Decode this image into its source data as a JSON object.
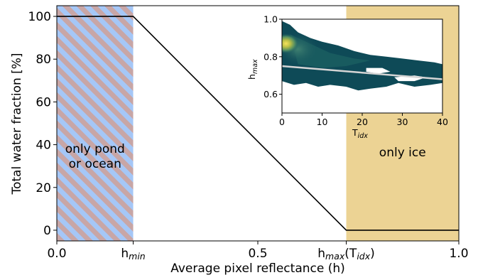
{
  "chart_data": [
    {
      "type": "line",
      "xlabel": "Average pixel reflectance (h)",
      "ylabel": "Total water fraction [%]",
      "xlim": [
        0.0,
        1.0
      ],
      "ylim": [
        -5,
        105
      ],
      "x_ticks": [
        {
          "value": 0.0,
          "label": "0.0"
        },
        {
          "value": 0.19,
          "label": "h",
          "sub": "min"
        },
        {
          "value": 0.5,
          "label": "0.5"
        },
        {
          "value": 0.72,
          "label": "h",
          "sub": "max",
          "suffix": "(T",
          "sub2": "idx",
          "suffix2": ")"
        },
        {
          "value": 1.0,
          "label": "1.0"
        }
      ],
      "y_ticks": [
        0,
        20,
        40,
        60,
        80,
        100
      ],
      "series": [
        {
          "x": [
            0.0,
            0.19,
            0.72,
            1.0
          ],
          "y": [
            100,
            100,
            0,
            0
          ],
          "color": "#000000"
        }
      ],
      "regions": [
        {
          "x0": 0.0,
          "x1": 0.19,
          "style": "hatched",
          "colors": [
            "#a5c7f7",
            "#c8a6a6"
          ],
          "label_lines": [
            "only pond",
            "or ocean"
          ]
        },
        {
          "x0": 0.72,
          "x1": 1.0,
          "style": "fill",
          "color": "#ecd394",
          "label_lines": [
            "only ice"
          ]
        }
      ]
    },
    {
      "type": "heatmap",
      "title": "",
      "xlabel": "T",
      "xlabel_sub": "idx",
      "ylabel": "h",
      "ylabel_sub": "max",
      "xlim": [
        0,
        40
      ],
      "ylim": [
        0.5,
        1.0
      ],
      "x_ticks": [
        0,
        10,
        20,
        30,
        40
      ],
      "y_ticks": [
        0.6,
        0.8,
        1.0
      ],
      "y_tick_labels": [
        "0.6",
        "0.8",
        "1.0"
      ],
      "colors": {
        "low": "#0e4a57",
        "mid": "#2f7a6e",
        "high": "#ecd44a"
      },
      "regression_line": {
        "x": [
          0,
          40
        ],
        "y": [
          0.75,
          0.68
        ],
        "color": "#d5d5d5"
      },
      "density_peak": {
        "x": 1,
        "y": 0.87
      }
    }
  ]
}
